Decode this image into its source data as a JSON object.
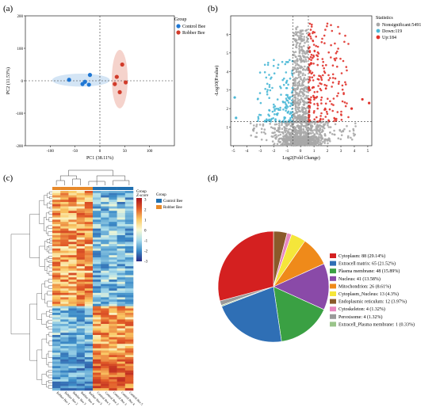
{
  "panel_labels": {
    "a": "(a)",
    "b": "(b)",
    "c": "(c)",
    "d": "(d)"
  },
  "chart_data": [
    {
      "type": "scatter",
      "panel": "(a)",
      "xlabel": "PC1 (38.11%)",
      "ylabel": "PC2 (11.53%)",
      "xlim": [
        -150,
        150
      ],
      "ylim": [
        -200,
        200
      ],
      "xticks": [
        "-100",
        "-50",
        "0",
        "50",
        "100"
      ],
      "yticks": [
        "200",
        "100",
        "0",
        "-100",
        "-200"
      ],
      "legend_title": "Group",
      "legend_position": "top-right",
      "grid": false,
      "series": [
        {
          "name": "Control Bee",
          "color": "#1f77d4",
          "ellipse_color": "#c9dff3",
          "x": [
            -62,
            -35,
            -30,
            -22,
            -20
          ],
          "y": [
            3,
            -10,
            -3,
            -12,
            18
          ]
        },
        {
          "name": "Robber Bee",
          "color": "#d13b2a",
          "ellipse_color": "#f2c8bf",
          "x": [
            30,
            34,
            40,
            45,
            52
          ],
          "y": [
            -10,
            12,
            -35,
            50,
            -5
          ]
        }
      ]
    },
    {
      "type": "scatter",
      "panel": "(b)",
      "xlabel": "Log2(Fold Change)",
      "ylabel": "-Log10(P.value)",
      "xlim": [
        -5.2,
        5.3
      ],
      "ylim": [
        0,
        7
      ],
      "xticks": [
        "-5",
        "-4",
        "-3",
        "-2",
        "-1",
        "0",
        "1",
        "2",
        "3",
        "4",
        "5"
      ],
      "yticks": [
        "1",
        "2",
        "3",
        "4",
        "5",
        "6"
      ],
      "threshold_x": [
        -0.58,
        0.58
      ],
      "threshold_y": 1.3,
      "legend_title": "Statistics",
      "legend_position": "top-right",
      "series": [
        {
          "name": "Nonsignificant:5491",
          "color": "#a8a8a8"
        },
        {
          "name": "Down:119",
          "color": "#4ab8d6"
        },
        {
          "name": "Up:184",
          "color": "#e0332c"
        }
      ],
      "highlighted_points": [
        {
          "x": 4.6,
          "y": 2.5,
          "group": "Up"
        },
        {
          "x": 5.1,
          "y": 2.3,
          "group": "Up"
        },
        {
          "x": 3.8,
          "y": 2.0,
          "group": "Up"
        },
        {
          "x": -4.9,
          "y": 2.6,
          "group": "Down"
        },
        {
          "x": -4.8,
          "y": 1.5,
          "group": "Down"
        }
      ]
    },
    {
      "type": "heatmap",
      "panel": "(c)",
      "legend_title": "Group",
      "scale_title": "Z-score",
      "scale_ticks": [
        "3",
        "2",
        "1",
        "0",
        "-1",
        "-2",
        "-3"
      ],
      "legend_entries": [
        {
          "name": "Control Bee",
          "color": "#1f6fb0"
        },
        {
          "name": "Robber Bee",
          "color": "#e88a2a"
        }
      ],
      "columns": [
        "Robber Bee 1",
        "Robber Bee 2",
        "Robber Bee 3",
        "Robber Bee 4",
        "Robber Bee 5",
        "Control Bee 1",
        "Control Bee 2",
        "Control Bee 3",
        "Control Bee 4",
        "Control Bee 5"
      ]
    },
    {
      "type": "pie",
      "panel": "(d)",
      "legend_position": "right",
      "slices": [
        {
          "label": "Cytoplasm: 88 (29.14%)",
          "value": 88,
          "color": "#d42020"
        },
        {
          "label": "Extracell matrix: 65 (21.52%)",
          "value": 65,
          "color": "#2f6fb5"
        },
        {
          "label": "Plasma membrane: 48 (15.89%)",
          "value": 48,
          "color": "#3aa043"
        },
        {
          "label": "Nucleus: 41 (13.58%)",
          "value": 41,
          "color": "#8a4aa8"
        },
        {
          "label": "Mitochondrion: 26 (8.61%)",
          "value": 26,
          "color": "#ef8a1a"
        },
        {
          "label": "Cytoplasm_Nucleus: 13 (4.3%)",
          "value": 13,
          "color": "#f5e63a"
        },
        {
          "label": "Endoplasmic reticulum: 12 (3.97%)",
          "value": 12,
          "color": "#8a5a2a"
        },
        {
          "label": "Cytoskeleton: 4 (1.32%)",
          "value": 4,
          "color": "#e888c0"
        },
        {
          "label": "Peroxisome: 4 (1.32%)",
          "value": 4,
          "color": "#9a9a9a"
        },
        {
          "label": "Extracell_Plasma membrane: 1 (0.33%)",
          "value": 1,
          "color": "#9ac48a"
        }
      ]
    }
  ]
}
